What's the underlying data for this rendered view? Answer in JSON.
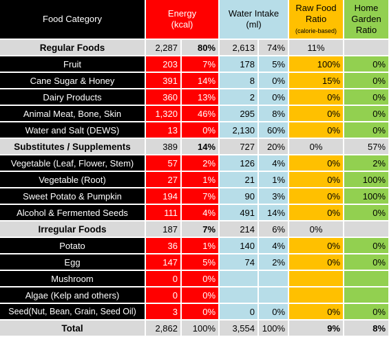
{
  "headers": {
    "food": "Food Category",
    "energy_l1": "Energy",
    "energy_l2": "(kcal)",
    "water_l1": "Water Intake",
    "water_l2": "(ml)",
    "raw_l1": "Raw Food",
    "raw_l2": "Ratio",
    "raw_l3": "(calorie-based)",
    "garden_l1": "Home",
    "garden_l2": "Garden",
    "garden_l3": "Ratio"
  },
  "colors": {
    "food": "#000000",
    "energy": "#ff0000",
    "water": "#b7dde8",
    "raw": "#ffc000",
    "garden": "#92d050",
    "group": "#d9d9d9"
  },
  "rows": [
    {
      "label": "Regular Foods",
      "e": "2,287",
      "ep": "80%",
      "w": "2,613",
      "wp": "74%",
      "r": "11%",
      "g": ""
    },
    {
      "label": "Fruit",
      "e": "203",
      "ep": "7%",
      "w": "178",
      "wp": "5%",
      "r": "100%",
      "g": "0%"
    },
    {
      "label": "Cane Sugar & Honey",
      "e": "391",
      "ep": "14%",
      "w": "8",
      "wp": "0%",
      "r": "15%",
      "g": "0%"
    },
    {
      "label": "Dairy Products",
      "e": "360",
      "ep": "13%",
      "w": "2",
      "wp": "0%",
      "r": "0%",
      "g": "0%"
    },
    {
      "label": "Animal Meat, Bone, Skin",
      "e": "1,320",
      "ep": "46%",
      "w": "295",
      "wp": "8%",
      "r": "0%",
      "g": "0%"
    },
    {
      "label": "Water and Salt (DEWS)",
      "e": "13",
      "ep": "0%",
      "w": "2,130",
      "wp": "60%",
      "r": "0%",
      "g": "0%"
    },
    {
      "label": "Substitutes / Supplements",
      "e": "389",
      "ep": "14%",
      "w": "727",
      "wp": "20%",
      "r": "0%",
      "g": "57%"
    },
    {
      "label": "Vegetable (Leaf, Flower, Stem)",
      "e": "57",
      "ep": "2%",
      "w": "126",
      "wp": "4%",
      "r": "0%",
      "g": "2%"
    },
    {
      "label": "Vegetable (Root)",
      "e": "27",
      "ep": "1%",
      "w": "21",
      "wp": "1%",
      "r": "0%",
      "g": "100%"
    },
    {
      "label": "Sweet Potato & Pumpkin",
      "e": "194",
      "ep": "7%",
      "w": "90",
      "wp": "3%",
      "r": "0%",
      "g": "100%"
    },
    {
      "label": "Alcohol & Fermented Seeds",
      "e": "111",
      "ep": "4%",
      "w": "491",
      "wp": "14%",
      "r": "0%",
      "g": "0%"
    },
    {
      "label": "Irregular Foods",
      "e": "187",
      "ep": "7%",
      "w": "214",
      "wp": "6%",
      "r": "0%",
      "g": ""
    },
    {
      "label": "Potato",
      "e": "36",
      "ep": "1%",
      "w": "140",
      "wp": "4%",
      "r": "0%",
      "g": "0%"
    },
    {
      "label": "Egg",
      "e": "147",
      "ep": "5%",
      "w": "74",
      "wp": "2%",
      "r": "0%",
      "g": "0%"
    },
    {
      "label": "Mushroom",
      "e": "0",
      "ep": "0%",
      "w": "",
      "wp": "",
      "r": "",
      "g": ""
    },
    {
      "label": "Algae (Kelp and others)",
      "e": "0",
      "ep": "0%",
      "w": "",
      "wp": "",
      "r": "",
      "g": ""
    },
    {
      "label": "Seed(Nut, Bean, Grain, Seed Oil)",
      "e": "3",
      "ep": "0%",
      "w": "0",
      "wp": "0%",
      "r": "0%",
      "g": "0%"
    },
    {
      "label": "Total",
      "e": "2,862",
      "ep": "100%",
      "w": "3,554",
      "wp": "100%",
      "r": "9%",
      "g": "8%"
    }
  ]
}
